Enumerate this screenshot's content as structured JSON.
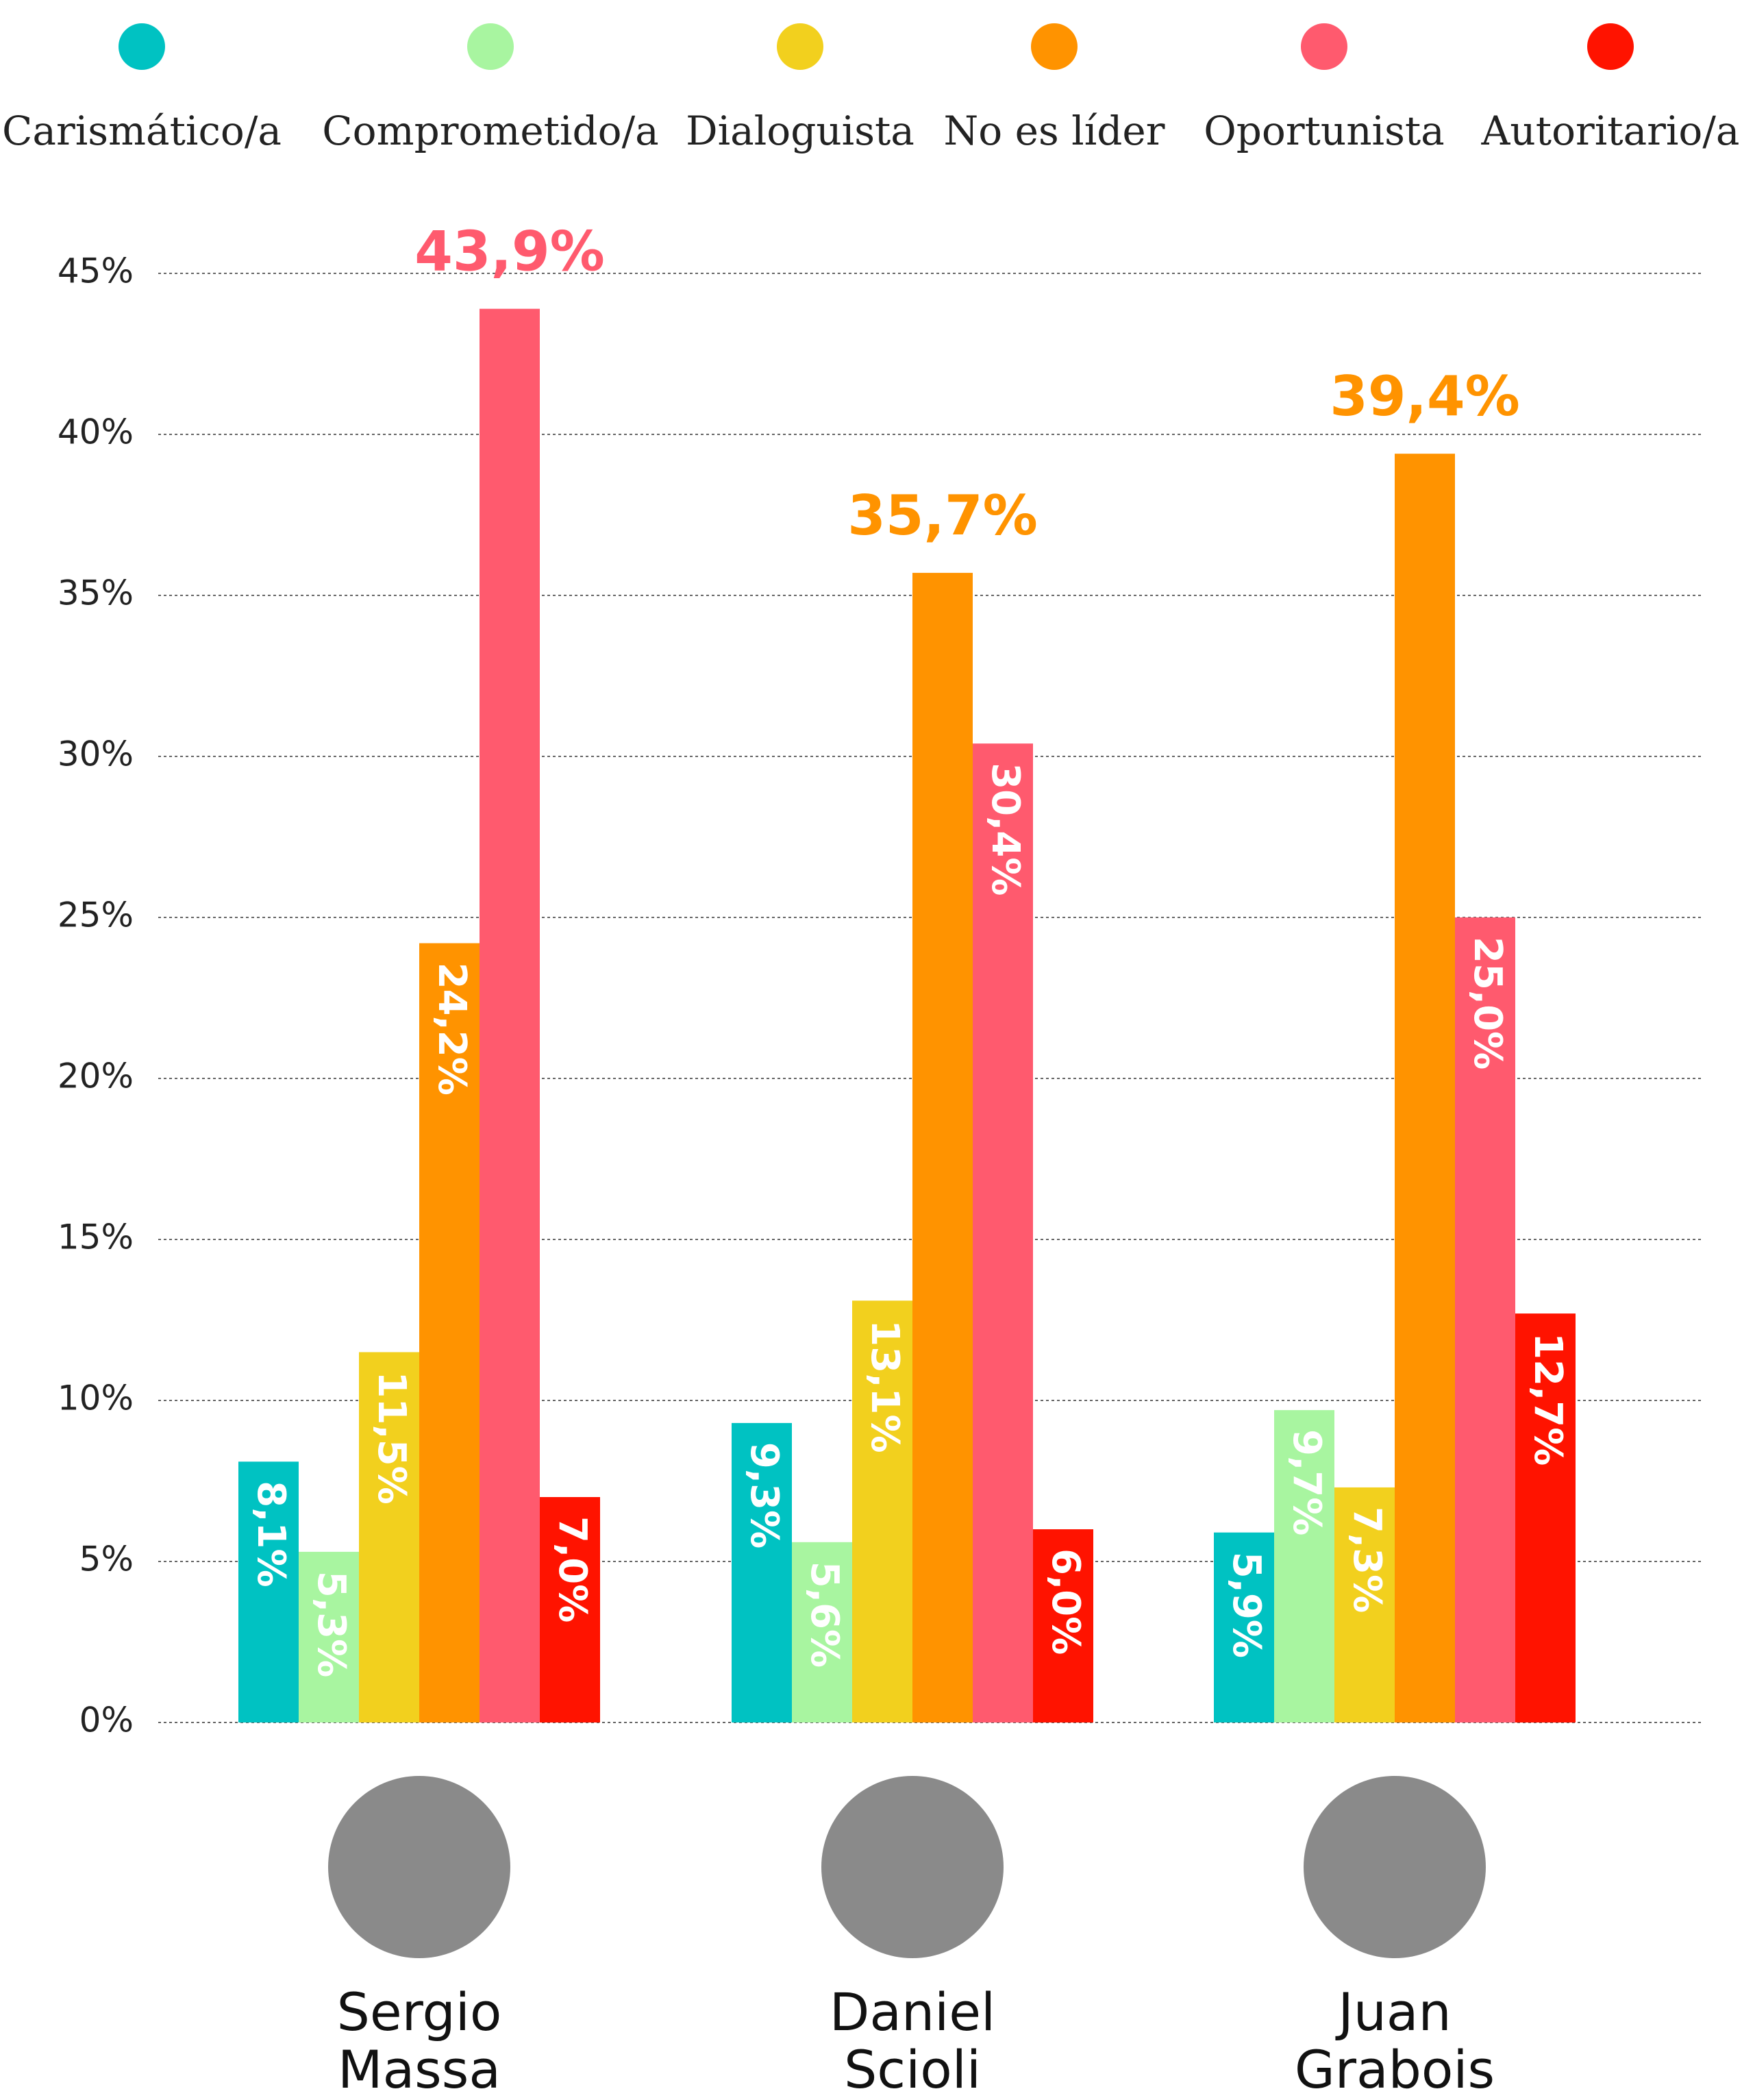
{
  "chart_data": {
    "type": "bar",
    "categories": [
      "Sergio Massa",
      "Daniel Scioli",
      "Juan Grabois"
    ],
    "series": [
      {
        "name": "Carismático/a",
        "color": "#00c2c2",
        "values": [
          8.1,
          9.3,
          5.9
        ],
        "value_labels": [
          "8,1%",
          "9,3%",
          "5,9%"
        ]
      },
      {
        "name": "Comprometido/a",
        "color": "#a8f5a0",
        "values": [
          5.3,
          5.6,
          9.7
        ],
        "value_labels": [
          "5,3%",
          "5,6%",
          "9,7%"
        ]
      },
      {
        "name": "Dialoguista",
        "color": "#f2d01e",
        "values": [
          11.5,
          13.1,
          7.3
        ],
        "value_labels": [
          "11,5%",
          "13,1%",
          "7,3%"
        ]
      },
      {
        "name": "No es líder",
        "color": "#ff9300",
        "values": [
          24.2,
          35.7,
          39.4
        ],
        "value_labels": [
          "24,2%",
          "35,7%",
          "39,4%"
        ]
      },
      {
        "name": "Oportunista",
        "color": "#ff5a6e",
        "values": [
          43.9,
          30.4,
          25.0
        ],
        "value_labels": [
          "43,9%",
          "30,4%",
          "25,0%"
        ]
      },
      {
        "name": "Autoritario/a",
        "color": "#ff1300",
        "values": [
          7.0,
          6.0,
          12.7
        ],
        "value_labels": [
          "7,0%",
          "6,0%",
          "12,7%"
        ]
      }
    ],
    "ylim": [
      0,
      45
    ],
    "yticks": [
      {
        "value": 0,
        "label": "0%"
      },
      {
        "value": 5,
        "label": "5%"
      },
      {
        "value": 10,
        "label": "10%"
      },
      {
        "value": 15,
        "label": "15%"
      },
      {
        "value": 20,
        "label": "20%"
      },
      {
        "value": 25,
        "label": "25%"
      },
      {
        "value": 30,
        "label": "30%"
      },
      {
        "value": 35,
        "label": "35%"
      },
      {
        "value": 40,
        "label": "40%"
      },
      {
        "value": 45,
        "label": "45%"
      }
    ],
    "grid": true
  }
}
